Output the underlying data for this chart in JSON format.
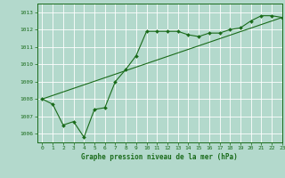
{
  "title": "Graphe pression niveau de la mer (hPa)",
  "bg_color": "#b3d9cc",
  "grid_color": "#ffffff",
  "line_color": "#1a6b1a",
  "xlim": [
    -0.5,
    23
  ],
  "ylim": [
    1005.5,
    1013.5
  ],
  "yticks": [
    1006,
    1007,
    1008,
    1009,
    1010,
    1011,
    1012,
    1013
  ],
  "xticks": [
    0,
    1,
    2,
    3,
    4,
    5,
    6,
    7,
    8,
    9,
    10,
    11,
    12,
    13,
    14,
    15,
    16,
    17,
    18,
    19,
    20,
    21,
    22,
    23
  ],
  "series1_x": [
    0,
    1,
    2,
    3,
    4,
    5,
    6,
    7,
    8,
    9,
    10,
    11,
    12,
    13,
    14,
    15,
    16,
    17,
    18,
    19,
    20,
    21,
    22,
    23
  ],
  "series1_y": [
    1008.0,
    1007.7,
    1006.5,
    1006.7,
    1005.8,
    1007.4,
    1007.5,
    1009.0,
    1009.7,
    1010.5,
    1011.9,
    1011.9,
    1011.9,
    1011.9,
    1011.7,
    1011.6,
    1011.8,
    1011.8,
    1012.0,
    1012.1,
    1012.5,
    1012.8,
    1012.8,
    1012.7
  ],
  "series2_x": [
    0,
    23
  ],
  "series2_y": [
    1008.0,
    1012.7
  ],
  "xlabel_fontsize": 5.5,
  "tick_fontsize": 4.5
}
